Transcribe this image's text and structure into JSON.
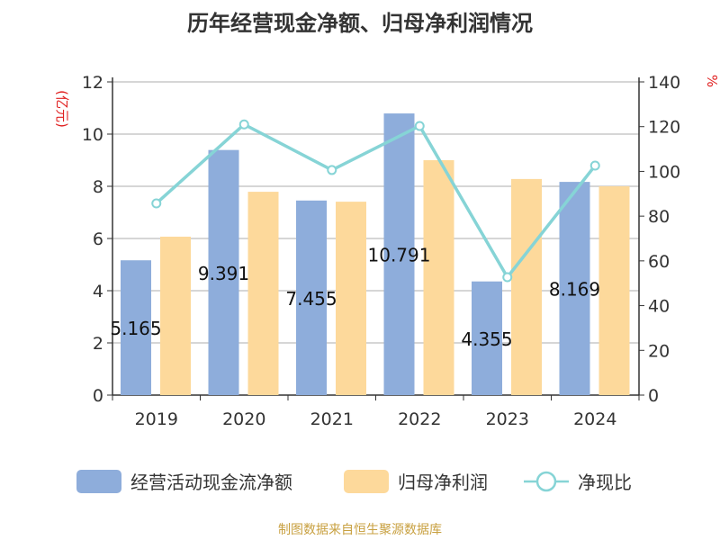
{
  "title": "历年经营现金净额、归母净利润情况",
  "source": "制图数据来自恒生聚源数据库",
  "chart_data": {
    "type": "bar",
    "title": "历年经营现金净额、归母净利润情况",
    "categories": [
      "2019",
      "2020",
      "2021",
      "2022",
      "2023",
      "2024"
    ],
    "y_left": {
      "label": "(亿元)",
      "range": [
        0,
        12
      ],
      "ticks": [
        0,
        2,
        4,
        6,
        8,
        10,
        12
      ]
    },
    "y_right": {
      "label": "%",
      "range": [
        0,
        140
      ],
      "ticks": [
        0,
        20,
        40,
        60,
        80,
        100,
        120,
        140
      ]
    },
    "grid": true,
    "legend_position": "bottom",
    "series": [
      {
        "name": "经营活动现金流净额",
        "type": "bar",
        "axis": "left",
        "color": "#8eaddb",
        "values": [
          5.165,
          9.391,
          7.455,
          10.791,
          4.355,
          8.169
        ],
        "labels": [
          "5.165",
          "9.391",
          "7.455",
          "10.791",
          "4.355",
          "8.169"
        ]
      },
      {
        "name": "归母净利润",
        "type": "bar",
        "axis": "left",
        "color": "#fdd99b",
        "values": [
          6.07,
          7.79,
          7.41,
          9.0,
          8.28,
          8.0
        ]
      },
      {
        "name": "净现比",
        "type": "line",
        "axis": "right",
        "color": "#86d4d6",
        "values": [
          85.7,
          121,
          100.6,
          120.3,
          52.7,
          102.6
        ]
      }
    ]
  }
}
